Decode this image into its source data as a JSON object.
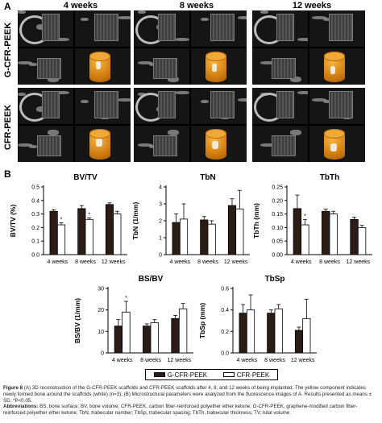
{
  "panel_a": {
    "letter": "A",
    "column_labels": [
      "4 weeks",
      "8 weeks",
      "12 weeks"
    ],
    "row_labels": [
      "G-CFR-PEEK",
      "CFR-PEEK"
    ]
  },
  "panel_b": {
    "letter": "B",
    "colors": {
      "g_cfr_peek": "#2b1d16",
      "cfr_peek": "#ffffff"
    }
  },
  "chart_data": [
    {
      "type": "bar",
      "title": "BV/TV",
      "ylabel": "BV/TV (%)",
      "categories": [
        "4 weeks",
        "8 weeks",
        "12 weeks"
      ],
      "ylim": [
        0,
        0.5
      ],
      "yticks": [
        "0.0",
        "0.1",
        "0.2",
        "0.3",
        "0.4",
        "0.5"
      ],
      "series": [
        {
          "name": "G-CFR-PEEK",
          "values": [
            0.32,
            0.34,
            0.37
          ],
          "errors": [
            0.012,
            0.022,
            0.012
          ]
        },
        {
          "name": "CFR-PEEK",
          "values": [
            0.22,
            0.26,
            0.3
          ],
          "errors": [
            0.015,
            0.012,
            0.02
          ]
        }
      ],
      "significance": [
        "*",
        "*",
        ""
      ]
    },
    {
      "type": "bar",
      "title": "TbN",
      "ylabel": "TbN (1/mm)",
      "categories": [
        "4 weeks",
        "8 weeks",
        "12 weeks"
      ],
      "ylim": [
        0,
        4
      ],
      "yticks": [
        "0",
        "1",
        "2",
        "3",
        "4"
      ],
      "series": [
        {
          "name": "G-CFR-PEEK",
          "values": [
            1.9,
            2.05,
            2.9
          ],
          "errors": [
            0.5,
            0.2,
            0.4
          ]
        },
        {
          "name": "CFR-PEEK",
          "values": [
            2.1,
            1.8,
            2.7
          ],
          "errors": [
            0.9,
            0.2,
            1.1
          ]
        }
      ],
      "significance": [
        "",
        "",
        ""
      ]
    },
    {
      "type": "bar",
      "title": "TbTh",
      "ylabel": "TbTh (mm)",
      "categories": [
        "4 weeks",
        "8 weeks",
        "12 weeks"
      ],
      "ylim": [
        0,
        0.25
      ],
      "yticks": [
        "0.00",
        "0.05",
        "0.10",
        "0.15",
        "0.20",
        "0.25"
      ],
      "series": [
        {
          "name": "G-CFR-PEEK",
          "values": [
            0.17,
            0.16,
            0.13
          ],
          "errors": [
            0.05,
            0.008,
            0.008
          ]
        },
        {
          "name": "CFR-PEEK",
          "values": [
            0.11,
            0.15,
            0.1
          ],
          "errors": [
            0.02,
            0.01,
            0.008
          ]
        }
      ],
      "significance": [
        "*",
        "",
        ""
      ]
    },
    {
      "type": "bar",
      "title": "BS/BV",
      "ylabel": "BS/BV (1/mm)",
      "categories": [
        "4 weeks",
        "8 weeks",
        "12 weeks"
      ],
      "ylim": [
        0,
        30
      ],
      "yticks": [
        "0",
        "10",
        "20",
        "30"
      ],
      "series": [
        {
          "name": "G-CFR-PEEK",
          "values": [
            12.5,
            12.5,
            16
          ],
          "errors": [
            3,
            1,
            1.5
          ]
        },
        {
          "name": "CFR-PEEK",
          "values": [
            19,
            14,
            20.5
          ],
          "errors": [
            5,
            1.5,
            2.5
          ]
        }
      ],
      "significance": [
        "*",
        "",
        ""
      ]
    },
    {
      "type": "bar",
      "title": "TbSp",
      "ylabel": "TbSp (mm)",
      "categories": [
        "4 weeks",
        "8 weeks",
        "12 weeks"
      ],
      "ylim": [
        0,
        0.6
      ],
      "yticks": [
        "0.0",
        "0.2",
        "0.4",
        "0.6"
      ],
      "series": [
        {
          "name": "G-CFR-PEEK",
          "values": [
            0.37,
            0.37,
            0.21
          ],
          "errors": [
            0.08,
            0.03,
            0.03
          ]
        },
        {
          "name": "CFR-PEEK",
          "values": [
            0.4,
            0.41,
            0.32
          ],
          "errors": [
            0.14,
            0.04,
            0.18
          ]
        }
      ],
      "significance": [
        "",
        "",
        ""
      ]
    }
  ],
  "legend": {
    "g_cfr_peek": "G-CFR-PEEK",
    "cfr_peek": "CFR-PEEK"
  },
  "caption": {
    "figure_label": "Figure 8",
    "text": "(A) 3D reconstruction of the G-CFR-PEEK scaffolds and CFR-PEEK scaffolds after 4, 8, and 12 weeks of being implanted. The yellow component indicates newly formed bone around the scaffolds (white) (n=3). (B) Microstructural parameters were analyzed from the fluorescence images of A. Results presented as means ± SD. *P<0.05.",
    "abbrev_label": "Abbreviations:",
    "abbrev_text": "BS, bone surface; BV, bone volume; CFR-PEEK, carbon fiber-reinforced polyether ether ketone; G-CFR-PEEK, graphene-modified carbon fiber-reinforced polyether ether ketone; TbN, trabecular number; TbSp, trabecular spacing; TbTh, trabecular thickness; TV, total volume."
  }
}
